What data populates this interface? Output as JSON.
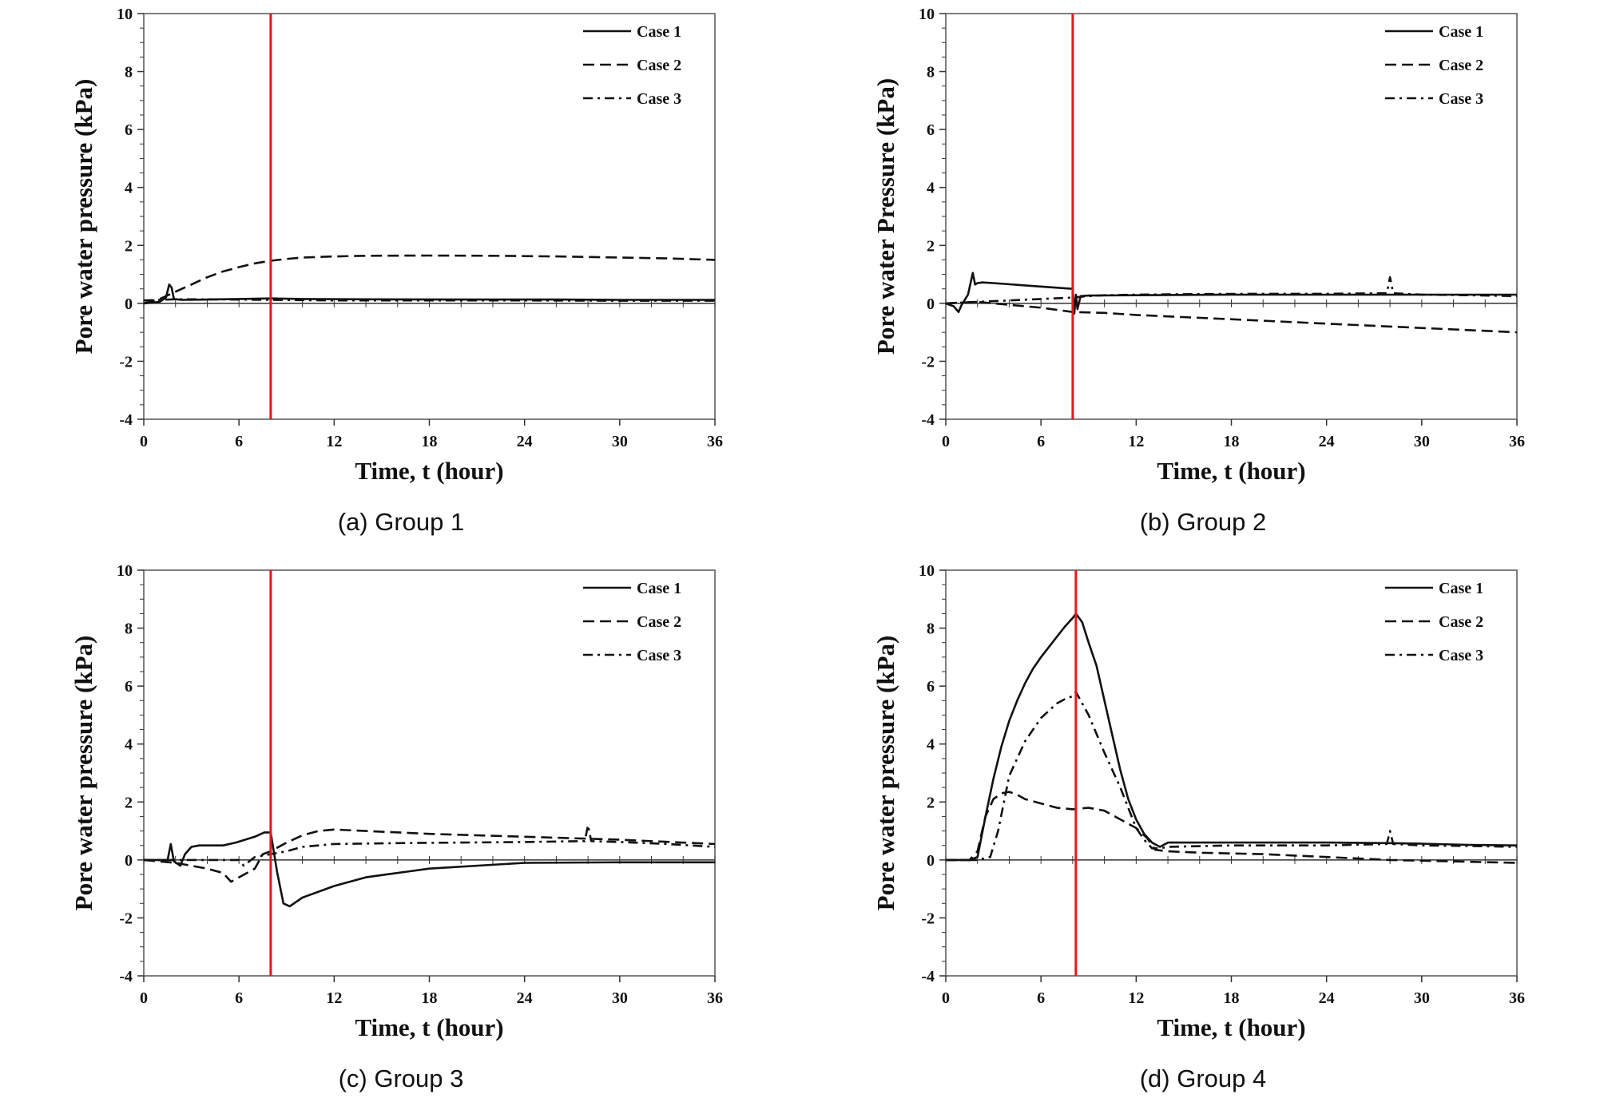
{
  "chart_data": [
    {
      "type": "line",
      "caption": "(a) Group 1",
      "xlabel": "Time, t (hour)",
      "ylabel": "Pore water pressure (kPa)",
      "xlim": [
        0,
        36
      ],
      "ylim": [
        -4,
        10
      ],
      "xticks": [
        "0",
        "6",
        "12",
        "18",
        "24",
        "30",
        "36"
      ],
      "yticks": [
        "10",
        "8",
        "6",
        "4",
        "2",
        "0",
        "-2",
        "-4"
      ],
      "vline": {
        "x": 8,
        "color": "#e8161d"
      },
      "legend": "top-right",
      "series": [
        {
          "name": "Case 1",
          "style": "solid",
          "x": [
            0,
            1.0,
            1.4,
            1.6,
            1.75,
            1.9,
            2.4,
            4,
            6,
            8,
            10,
            14,
            20,
            26,
            30,
            36
          ],
          "y": [
            0,
            0.05,
            0.2,
            0.65,
            0.55,
            0.15,
            0.12,
            0.13,
            0.15,
            0.17,
            0.15,
            0.14,
            0.13,
            0.13,
            0.12,
            0.12
          ]
        },
        {
          "name": "Case 2",
          "style": "dashed",
          "x": [
            0,
            1,
            2,
            3,
            4,
            5,
            6,
            7,
            8,
            9,
            10,
            12,
            14,
            18,
            22,
            26,
            30,
            33,
            36
          ],
          "y": [
            0,
            0.15,
            0.4,
            0.65,
            0.9,
            1.1,
            1.25,
            1.38,
            1.47,
            1.53,
            1.58,
            1.62,
            1.64,
            1.65,
            1.64,
            1.62,
            1.58,
            1.55,
            1.5
          ]
        },
        {
          "name": "Case 3",
          "style": "dashdot",
          "x": [
            0,
            1,
            2,
            4,
            8,
            12,
            18,
            24,
            30,
            36
          ],
          "y": [
            0.1,
            0.12,
            0.14,
            0.14,
            0.12,
            0.1,
            0.1,
            0.1,
            0.09,
            0.09
          ]
        }
      ]
    },
    {
      "type": "line",
      "caption": "(b) Group 2",
      "xlabel": "Time, t (hour)",
      "ylabel": "Pore water Pressure (kPa)",
      "xlim": [
        0,
        36
      ],
      "ylim": [
        -4,
        10
      ],
      "xticks": [
        "0",
        "6",
        "12",
        "18",
        "24",
        "30",
        "36"
      ],
      "yticks": [
        "10",
        "8",
        "6",
        "4",
        "2",
        "0",
        "-2",
        "-4"
      ],
      "vline": {
        "x": 8,
        "color": "#e8161d"
      },
      "legend": "top-right",
      "series": [
        {
          "name": "Case 1",
          "style": "solid",
          "x": [
            0,
            0.5,
            0.8,
            1.0,
            1.4,
            1.7,
            1.85,
            2.0,
            2.3,
            3,
            5,
            8,
            8.1,
            8.2,
            8.3,
            8.5,
            9,
            12,
            18,
            24,
            30,
            36
          ],
          "y": [
            0,
            -0.1,
            -0.3,
            -0.05,
            0.3,
            1.05,
            0.65,
            0.7,
            0.72,
            0.7,
            0.62,
            0.5,
            -0.35,
            0.3,
            -0.2,
            0.25,
            0.27,
            0.28,
            0.3,
            0.3,
            0.3,
            0.3
          ]
        },
        {
          "name": "Case 2",
          "style": "dashed",
          "x": [
            0,
            2,
            4,
            6,
            8,
            10,
            12,
            16,
            20,
            24,
            28,
            32,
            36
          ],
          "y": [
            0,
            0.05,
            -0.05,
            -0.15,
            -0.3,
            -0.33,
            -0.4,
            -0.5,
            -0.6,
            -0.7,
            -0.8,
            -0.9,
            -1.0
          ]
        },
        {
          "name": "Case 3",
          "style": "dashdot",
          "x": [
            0,
            2,
            4,
            6,
            8,
            9,
            10,
            12,
            16,
            20,
            24,
            27.8,
            28,
            28.2,
            30,
            33,
            36
          ],
          "y": [
            0,
            0.05,
            0.1,
            0.15,
            0.2,
            0.25,
            0.28,
            0.3,
            0.32,
            0.33,
            0.33,
            0.35,
            0.9,
            0.35,
            0.3,
            0.28,
            0.25
          ]
        }
      ]
    },
    {
      "type": "line",
      "caption": "(c) Group 3",
      "xlabel": "Time, t (hour)",
      "ylabel": "Pore water pressure (kPa)",
      "xlim": [
        0,
        36
      ],
      "ylim": [
        -4,
        10
      ],
      "xticks": [
        "0",
        "6",
        "12",
        "18",
        "24",
        "30",
        "36"
      ],
      "yticks": [
        "10",
        "8",
        "6",
        "4",
        "2",
        "0",
        "-2",
        "-4"
      ],
      "vline": {
        "x": 8,
        "color": "#e8161d"
      },
      "legend": "top-right",
      "series": [
        {
          "name": "Case 1",
          "style": "solid",
          "x": [
            0,
            1.5,
            1.7,
            1.9,
            2.3,
            2.6,
            3,
            3.5,
            5,
            5.8,
            7,
            7.6,
            8,
            8.4,
            8.8,
            9.2,
            10,
            12,
            14,
            18,
            24,
            30,
            36
          ],
          "y": [
            0,
            0,
            0.55,
            -0.05,
            -0.2,
            0.2,
            0.45,
            0.5,
            0.5,
            0.6,
            0.8,
            0.95,
            0.95,
            -0.4,
            -1.5,
            -1.6,
            -1.3,
            -0.9,
            -0.6,
            -0.3,
            -0.1,
            -0.08,
            -0.08
          ]
        },
        {
          "name": "Case 2",
          "style": "dashed",
          "x": [
            0,
            1,
            2,
            3,
            4,
            5,
            5.5,
            6,
            7,
            7.5,
            8,
            9,
            10,
            11,
            12,
            14,
            18,
            24,
            30,
            36
          ],
          "y": [
            0,
            -0.05,
            -0.1,
            -0.2,
            -0.3,
            -0.45,
            -0.75,
            -0.6,
            -0.3,
            0.2,
            0.3,
            0.6,
            0.85,
            1.0,
            1.05,
            1.0,
            0.9,
            0.8,
            0.7,
            0.55
          ]
        },
        {
          "name": "Case 3",
          "style": "dashdot",
          "x": [
            0,
            3,
            5,
            6,
            6.3,
            7,
            8,
            9,
            10,
            11,
            12,
            16,
            20,
            24,
            27.8,
            28,
            28.2,
            30,
            33,
            36
          ],
          "y": [
            0,
            0,
            0,
            0,
            -0.2,
            0.1,
            0.2,
            0.3,
            0.45,
            0.5,
            0.55,
            0.58,
            0.6,
            0.62,
            0.65,
            1.2,
            0.65,
            0.62,
            0.55,
            0.45
          ]
        }
      ]
    },
    {
      "type": "line",
      "caption": "(d) Group 4",
      "xlabel": "Time, t (hour)",
      "ylabel": "Pore water pressure (kPa)",
      "xlim": [
        0,
        36
      ],
      "ylim": [
        -4,
        10
      ],
      "xticks": [
        "0",
        "6",
        "12",
        "18",
        "24",
        "30",
        "36"
      ],
      "yticks": [
        "10",
        "8",
        "6",
        "4",
        "2",
        "0",
        "-2",
        "-4"
      ],
      "vline": {
        "x": 8.2,
        "color": "#e8161d"
      },
      "legend": "top-right",
      "series": [
        {
          "name": "Case 1",
          "style": "solid",
          "x": [
            0,
            1.5,
            2.0,
            2.5,
            3,
            3.5,
            4,
            4.5,
            5,
            5.5,
            6,
            6.5,
            7,
            7.5,
            8,
            8.2,
            8.6,
            9,
            9.5,
            10,
            10.5,
            11,
            11.5,
            12,
            12.5,
            13,
            13.5,
            14,
            18,
            24,
            28,
            30,
            33,
            36
          ],
          "y": [
            0,
            0,
            0.1,
            1.5,
            2.8,
            3.9,
            4.8,
            5.5,
            6.1,
            6.6,
            7.0,
            7.35,
            7.7,
            8.05,
            8.35,
            8.5,
            8.2,
            7.5,
            6.7,
            5.5,
            4.3,
            3.1,
            2.1,
            1.4,
            0.9,
            0.6,
            0.45,
            0.6,
            0.6,
            0.6,
            0.58,
            0.56,
            0.52,
            0.5
          ]
        },
        {
          "name": "Case 2",
          "style": "dashed",
          "x": [
            0,
            1.5,
            2.0,
            2.5,
            3,
            3.5,
            4,
            4.5,
            5,
            6,
            7,
            8,
            9,
            10,
            11,
            12,
            12.7,
            13.2,
            14,
            16,
            20,
            24,
            28,
            32,
            36
          ],
          "y": [
            0,
            0,
            0.3,
            1.5,
            2.1,
            2.3,
            2.35,
            2.25,
            2.1,
            1.95,
            1.8,
            1.75,
            1.8,
            1.7,
            1.4,
            1.1,
            0.75,
            0.35,
            0.3,
            0.25,
            0.2,
            0.1,
            0.0,
            -0.05,
            -0.1
          ]
        },
        {
          "name": "Case 3",
          "style": "dashdot",
          "x": [
            0,
            2,
            2.8,
            3.3,
            4,
            5,
            6,
            7,
            7.5,
            8.0,
            8.2,
            8.5,
            9,
            10,
            11,
            11.5,
            12,
            12.5,
            13,
            13.5,
            14,
            18,
            24,
            27.8,
            28,
            28.2,
            30,
            33,
            36
          ],
          "y": [
            0,
            0,
            0.1,
            1.0,
            2.9,
            4.1,
            4.9,
            5.4,
            5.55,
            5.65,
            5.8,
            5.5,
            5.0,
            3.7,
            2.5,
            1.8,
            1.1,
            0.7,
            0.4,
            0.4,
            0.45,
            0.5,
            0.5,
            0.55,
            1.0,
            0.55,
            0.5,
            0.48,
            0.45
          ]
        }
      ]
    }
  ]
}
